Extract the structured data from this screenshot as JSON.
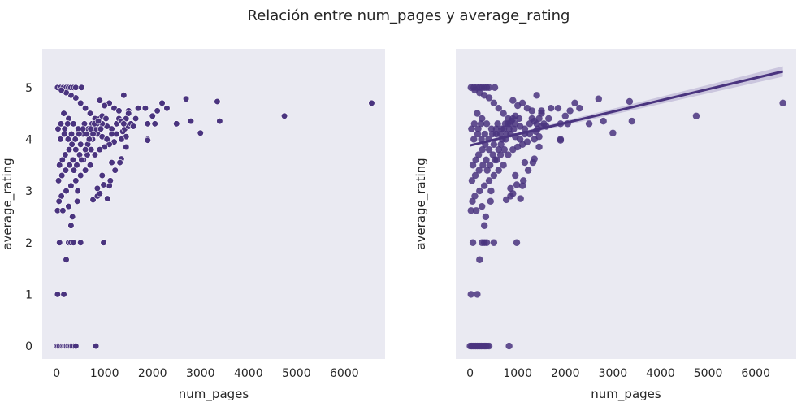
{
  "figure_title": "Relación entre num_pages y average_rating",
  "colors": {
    "point": "#4a347f",
    "point_alpha": "#4a347f",
    "line": "#4a347f",
    "ci_band": "#b6aed0",
    "axes_bg": "#eaeaf2",
    "text": "#262626"
  },
  "chart_data": [
    {
      "type": "scatter",
      "title": "",
      "xlabel": "num_pages",
      "ylabel": "average_rating",
      "xlim": [
        -300,
        6850
      ],
      "ylim": [
        -0.25,
        5.75
      ],
      "x_ticks": [
        0,
        1000,
        2000,
        3000,
        4000,
        5000,
        6000
      ],
      "y_ticks": [
        0,
        1,
        2,
        3,
        4,
        5
      ],
      "grid": false,
      "points": [
        [
          0,
          0
        ],
        [
          30,
          0
        ],
        [
          60,
          0
        ],
        [
          90,
          0
        ],
        [
          120,
          0
        ],
        [
          150,
          0
        ],
        [
          180,
          0
        ],
        [
          210,
          0
        ],
        [
          240,
          0
        ],
        [
          270,
          0
        ],
        [
          300,
          0
        ],
        [
          330,
          0
        ],
        [
          360,
          0
        ],
        [
          400,
          0
        ],
        [
          820,
          0
        ],
        [
          20,
          1
        ],
        [
          150,
          1
        ],
        [
          200,
          1.67
        ],
        [
          60,
          2
        ],
        [
          250,
          2
        ],
        [
          300,
          2
        ],
        [
          350,
          2
        ],
        [
          500,
          2
        ],
        [
          980,
          2
        ],
        [
          300,
          2.33
        ],
        [
          330,
          2.5
        ],
        [
          20,
          2.62
        ],
        [
          130,
          2.62
        ],
        [
          250,
          2.7
        ],
        [
          430,
          2.8
        ],
        [
          760,
          2.83
        ],
        [
          850,
          2.9
        ],
        [
          1060,
          2.85
        ],
        [
          20,
          5
        ],
        [
          80,
          5
        ],
        [
          140,
          5
        ],
        [
          200,
          5
        ],
        [
          250,
          5
        ],
        [
          300,
          5
        ],
        [
          350,
          5
        ],
        [
          400,
          5
        ],
        [
          520,
          5
        ],
        [
          1400,
          4.85
        ],
        [
          2200,
          4.7
        ],
        [
          2700,
          4.78
        ],
        [
          3350,
          4.73
        ],
        [
          4750,
          4.45
        ],
        [
          6570,
          4.7
        ],
        [
          1500,
          4.55
        ],
        [
          1650,
          4.4
        ],
        [
          1700,
          4.6
        ],
        [
          1850,
          4.6
        ],
        [
          1900,
          4.3
        ],
        [
          2000,
          4.45
        ],
        [
          2050,
          4.3
        ],
        [
          2100,
          4.55
        ],
        [
          2300,
          4.6
        ],
        [
          2500,
          4.3
        ],
        [
          2800,
          4.35
        ],
        [
          3000,
          4.12
        ],
        [
          3400,
          4.35
        ],
        [
          1900,
          4.0
        ],
        [
          1900,
          3.98
        ],
        [
          1450,
          3.85
        ],
        [
          1350,
          3.62
        ],
        [
          1320,
          3.55
        ],
        [
          1220,
          3.4
        ],
        [
          1150,
          3.55
        ],
        [
          1100,
          3.1
        ],
        [
          1120,
          3.2
        ],
        [
          980,
          3.12
        ],
        [
          900,
          2.95
        ],
        [
          950,
          3.3
        ],
        [
          850,
          3.05
        ],
        [
          1380,
          4.15
        ],
        [
          1420,
          4.2
        ],
        [
          1500,
          4.25
        ],
        [
          1550,
          4.3
        ],
        [
          1600,
          4.25
        ],
        [
          1450,
          4.4
        ],
        [
          1500,
          4.5
        ],
        [
          1200,
          4.6
        ],
        [
          1300,
          4.55
        ],
        [
          1100,
          4.7
        ],
        [
          1000,
          4.65
        ],
        [
          900,
          4.75
        ],
        [
          1250,
          4.3
        ],
        [
          1300,
          4.4
        ],
        [
          1350,
          4.35
        ],
        [
          1400,
          4.3
        ],
        [
          1450,
          4.05
        ],
        [
          1250,
          4.1
        ],
        [
          1150,
          4.2
        ],
        [
          1050,
          4.25
        ],
        [
          950,
          4.3
        ],
        [
          1350,
          4.0
        ],
        [
          1200,
          3.95
        ],
        [
          1100,
          3.9
        ],
        [
          1000,
          3.85
        ],
        [
          900,
          3.8
        ],
        [
          800,
          4.4
        ],
        [
          700,
          4.5
        ],
        [
          600,
          4.6
        ],
        [
          500,
          4.7
        ],
        [
          400,
          4.8
        ],
        [
          300,
          4.85
        ],
        [
          200,
          4.9
        ],
        [
          100,
          4.95
        ],
        [
          800,
          3.7
        ],
        [
          700,
          3.5
        ],
        [
          600,
          3.4
        ],
        [
          500,
          3.3
        ],
        [
          400,
          3.2
        ],
        [
          300,
          3.1
        ],
        [
          200,
          3.0
        ],
        [
          100,
          2.9
        ],
        [
          50,
          2.8
        ],
        [
          650,
          3.9
        ],
        [
          550,
          4.1
        ],
        [
          450,
          4.2
        ],
        [
          350,
          4.3
        ],
        [
          250,
          4.4
        ],
        [
          150,
          4.5
        ],
        [
          750,
          4.0
        ],
        [
          850,
          4.1
        ],
        [
          950,
          4.05
        ],
        [
          1050,
          4.0
        ],
        [
          1150,
          4.1
        ],
        [
          80,
          4.0
        ],
        [
          160,
          4.1
        ],
        [
          240,
          4.0
        ],
        [
          320,
          3.9
        ],
        [
          400,
          3.8
        ],
        [
          480,
          3.7
        ],
        [
          560,
          3.6
        ],
        [
          640,
          3.7
        ],
        [
          720,
          3.8
        ],
        [
          60,
          3.5
        ],
        [
          120,
          3.6
        ],
        [
          180,
          3.7
        ],
        [
          260,
          3.8
        ],
        [
          340,
          3.6
        ],
        [
          420,
          3.5
        ],
        [
          500,
          3.9
        ],
        [
          580,
          4.3
        ],
        [
          660,
          4.2
        ],
        [
          740,
          4.3
        ],
        [
          820,
          4.2
        ],
        [
          900,
          4.4
        ],
        [
          40,
          3.2
        ],
        [
          110,
          3.3
        ],
        [
          190,
          3.4
        ],
        [
          270,
          3.5
        ],
        [
          360,
          3.4
        ],
        [
          440,
          3.0
        ],
        [
          520,
          3.6
        ],
        [
          600,
          3.8
        ],
        [
          680,
          4.0
        ],
        [
          760,
          4.1
        ],
        [
          840,
          4.3
        ],
        [
          920,
          4.2
        ],
        [
          30,
          4.2
        ],
        [
          90,
          4.3
        ],
        [
          170,
          4.2
        ],
        [
          230,
          4.3
        ],
        [
          310,
          4.1
        ],
        [
          390,
          4.0
        ],
        [
          470,
          4.1
        ],
        [
          550,
          4.2
        ],
        [
          630,
          4.1
        ],
        [
          710,
          4.2
        ],
        [
          790,
          4.3
        ],
        [
          870,
          4.35
        ],
        [
          950,
          4.45
        ],
        [
          1030,
          4.4
        ]
      ],
      "style": "markers"
    },
    {
      "type": "scatter",
      "title": "",
      "xlabel": "num_pages",
      "ylabel": "average_rating",
      "xlim": [
        -300,
        6850
      ],
      "ylim": [
        -0.25,
        5.75
      ],
      "x_ticks": [
        0,
        1000,
        2000,
        3000,
        4000,
        5000,
        6000
      ],
      "y_ticks": [],
      "grid": false,
      "regression": {
        "x": [
          0,
          6570
        ],
        "y": [
          3.88,
          5.31
        ],
        "ci_low": [
          3.86,
          5.21
        ],
        "ci_high": [
          3.9,
          5.41
        ]
      },
      "points_ref": 0,
      "style": "regplot"
    }
  ]
}
